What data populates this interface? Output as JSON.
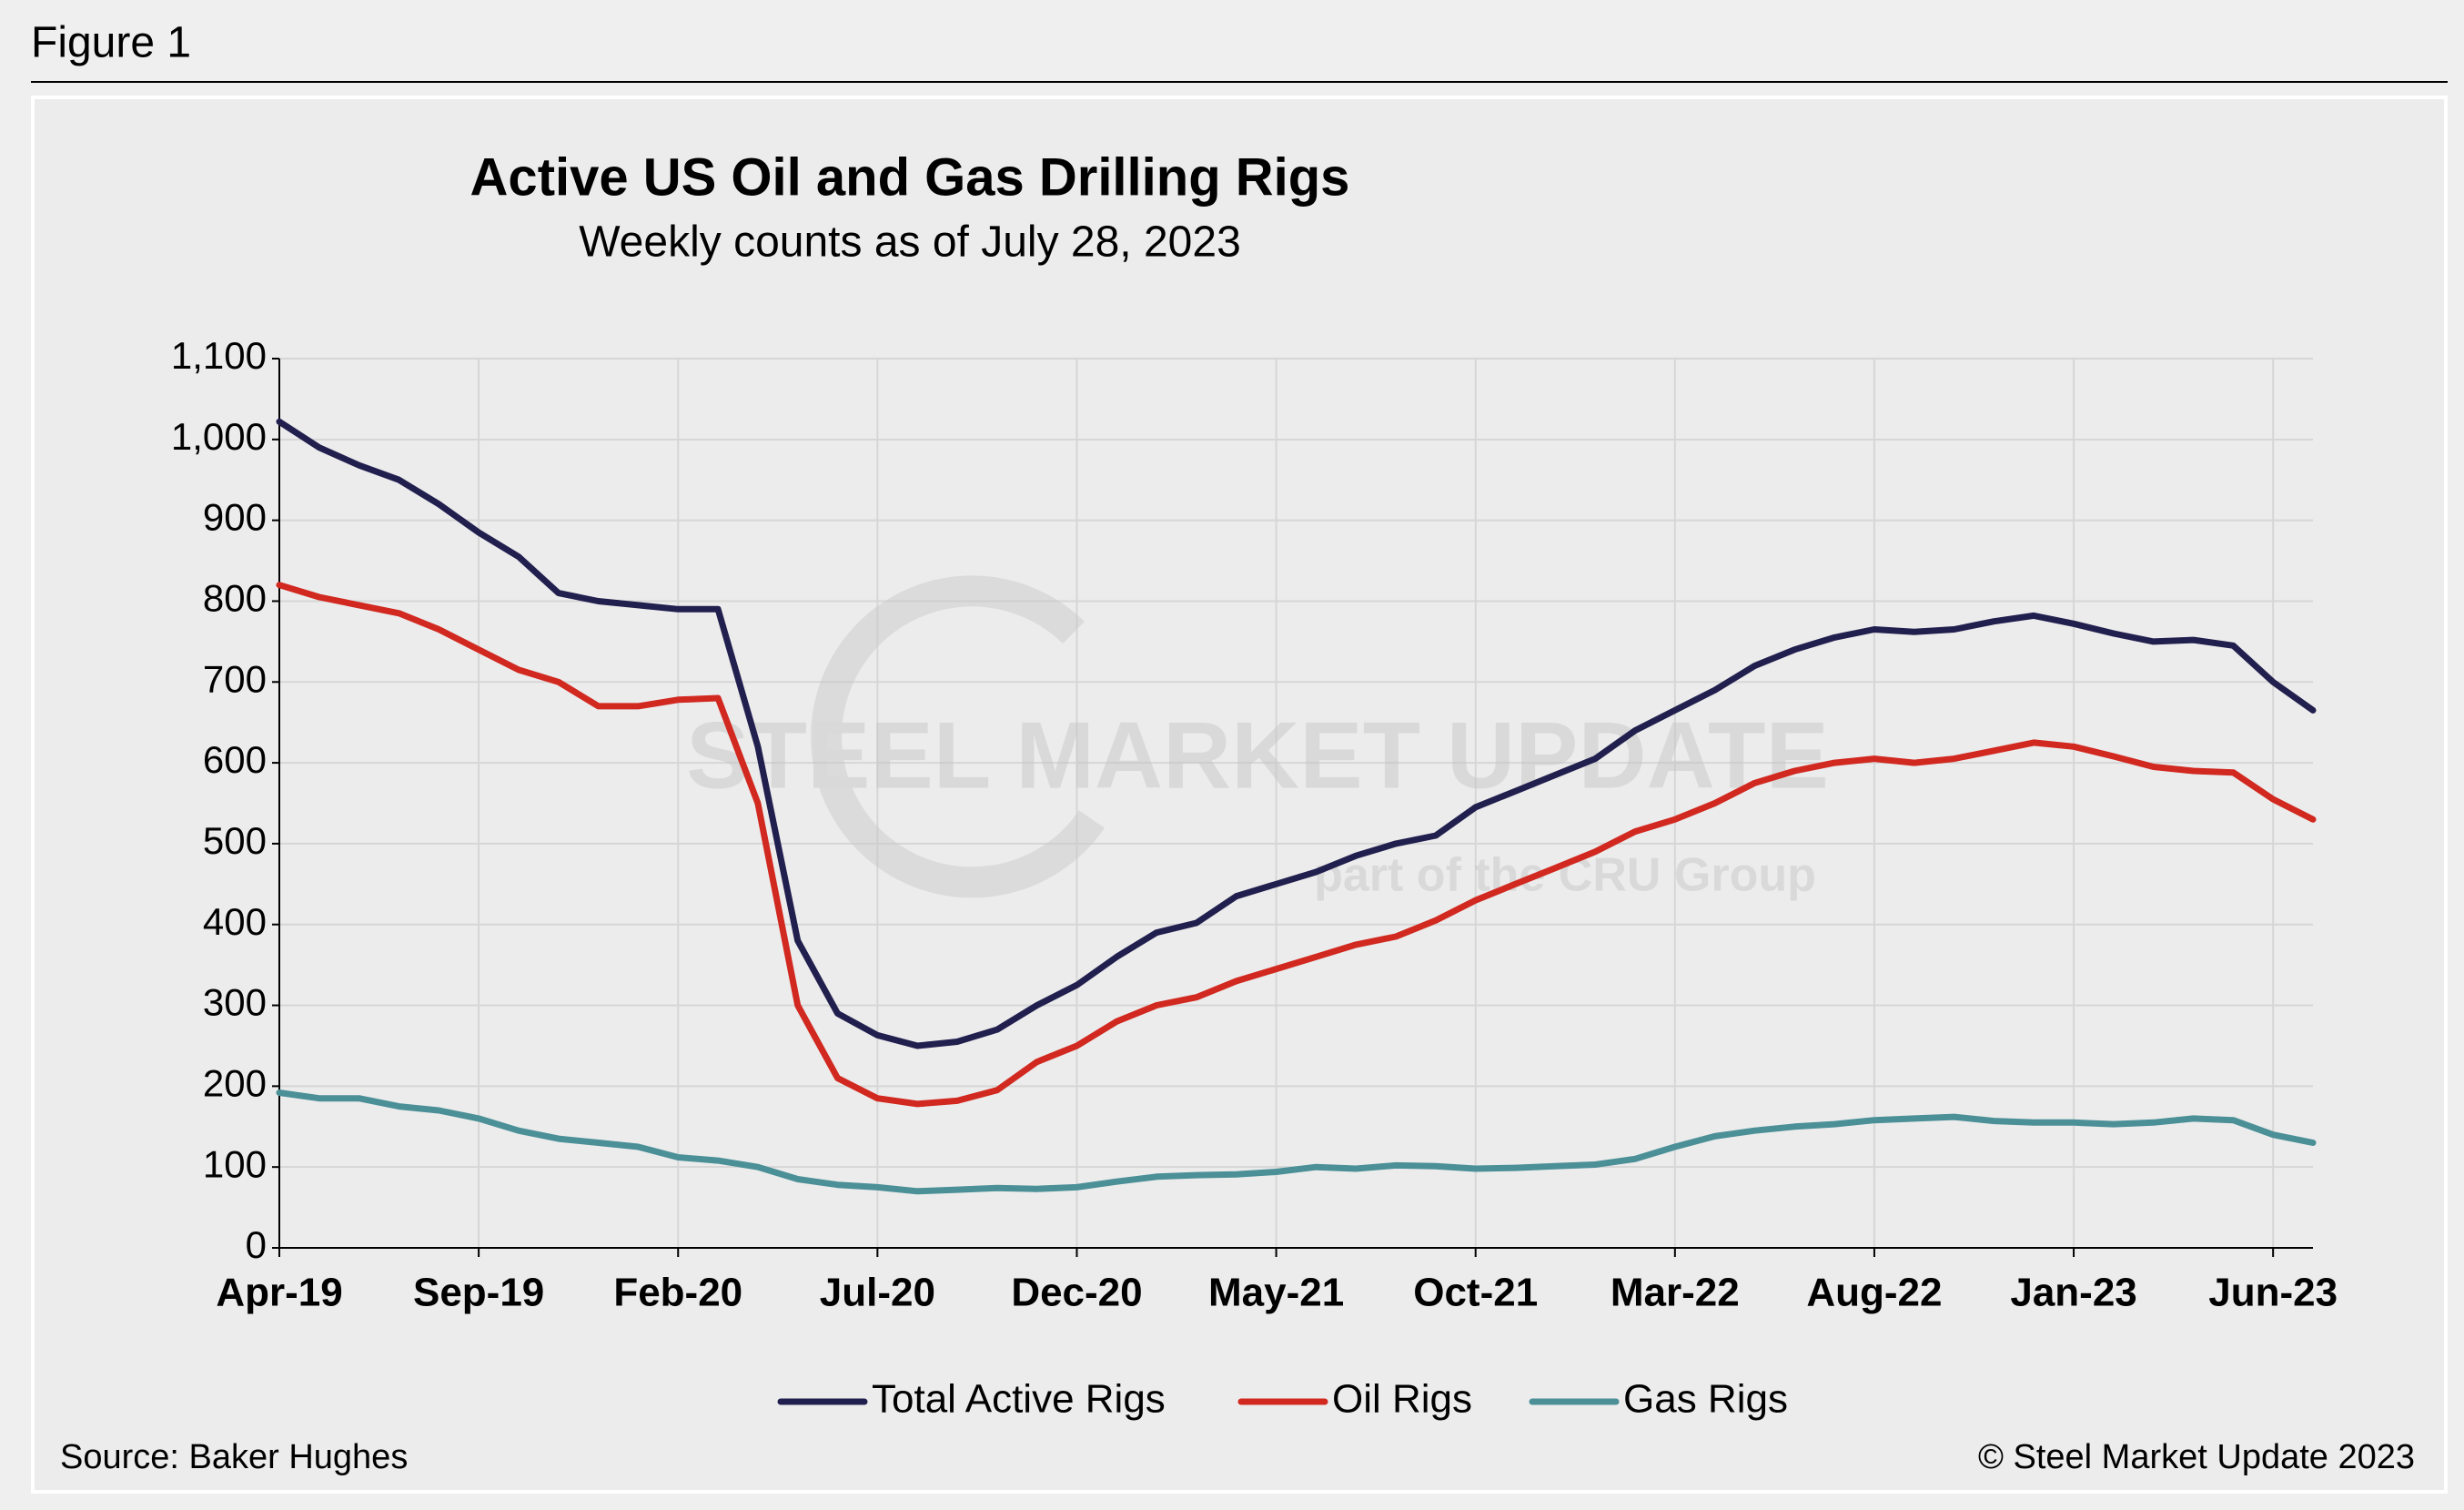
{
  "figure_label": "Figure 1",
  "chart_data": {
    "type": "line",
    "title": "Active US Oil and Gas Drilling Rigs",
    "subtitle": "Weekly counts as of July 28, 2023",
    "watermark": [
      "STEEL MARKET UPDATE",
      "part of the CRU Group"
    ],
    "source": "Source: Baker Hughes",
    "credit": "© Steel Market Update 2023",
    "categories": [
      "Apr-19",
      null,
      null,
      null,
      null,
      "Sep-19",
      null,
      null,
      null,
      null,
      "Feb-20",
      null,
      null,
      null,
      null,
      "Jul-20",
      null,
      null,
      null,
      null,
      "Dec-20",
      null,
      null,
      null,
      null,
      "May-21",
      null,
      null,
      null,
      null,
      "Oct-21",
      null,
      null,
      null,
      null,
      "Mar-22",
      null,
      null,
      null,
      null,
      "Aug-22",
      null,
      null,
      null,
      null,
      "Jan-23",
      null,
      null,
      null,
      null,
      "Jun-23",
      null
    ],
    "series": [
      {
        "name": "Total Active Rigs",
        "color": "#211f4e",
        "values": [
          1022,
          990,
          968,
          950,
          920,
          885,
          855,
          810,
          800,
          795,
          790,
          790,
          620,
          380,
          290,
          263,
          250,
          255,
          270,
          300,
          325,
          360,
          390,
          402,
          435,
          450,
          465,
          485,
          500,
          510,
          545,
          565,
          585,
          605,
          640,
          665,
          690,
          720,
          740,
          755,
          765,
          762,
          765,
          775,
          782,
          772,
          760,
          750,
          752,
          745,
          700,
          665
        ]
      },
      {
        "name": "Oil Rigs",
        "color": "#d1281f",
        "values": [
          820,
          805,
          795,
          785,
          765,
          740,
          715,
          700,
          670,
          670,
          678,
          680,
          550,
          300,
          210,
          185,
          178,
          182,
          195,
          230,
          250,
          280,
          300,
          310,
          330,
          345,
          360,
          375,
          385,
          405,
          430,
          450,
          470,
          490,
          515,
          530,
          550,
          575,
          590,
          600,
          605,
          600,
          605,
          615,
          625,
          620,
          608,
          595,
          590,
          588,
          555,
          530
        ]
      },
      {
        "name": "Gas Rigs",
        "color": "#4b8f97",
        "values": [
          192,
          185,
          185,
          175,
          170,
          160,
          145,
          135,
          130,
          125,
          112,
          108,
          100,
          85,
          78,
          75,
          70,
          72,
          74,
          73,
          75,
          82,
          88,
          90,
          91,
          94,
          100,
          98,
          102,
          101,
          98,
          99,
          101,
          103,
          110,
          125,
          138,
          145,
          150,
          153,
          158,
          160,
          162,
          157,
          155,
          155,
          153,
          155,
          160,
          158,
          140,
          130
        ]
      }
    ],
    "ylim": [
      0,
      1100
    ],
    "yticks": [
      0,
      100,
      200,
      300,
      400,
      500,
      600,
      700,
      800,
      900,
      {
        "value": 1000,
        "label": "1,000"
      },
      {
        "value": 1100,
        "label": "1,100"
      }
    ],
    "grid": true,
    "legend": "bottom"
  }
}
